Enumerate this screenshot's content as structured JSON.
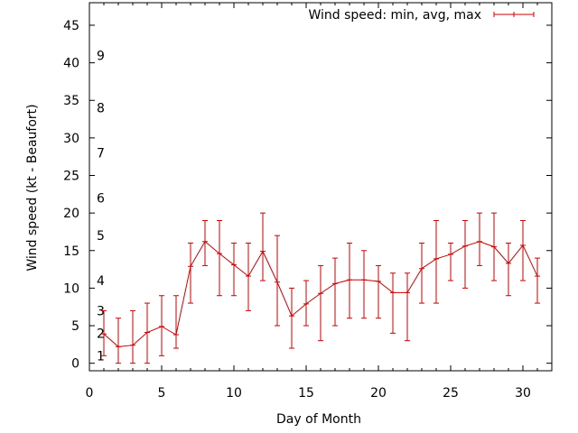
{
  "chart_data": {
    "type": "line",
    "xlabel": "Day of Month",
    "ylabel": "Wind speed (kt - Beaufort)",
    "xlim": [
      0,
      32
    ],
    "ylim": [
      -1,
      48
    ],
    "x_ticks": [
      "0",
      "5",
      "10",
      "15",
      "20",
      "25",
      "30"
    ],
    "y_ticks": [
      "0",
      "5",
      "10",
      "15",
      "20",
      "25",
      "30",
      "35",
      "40",
      "45"
    ],
    "beaufort_labels": [
      {
        "label": "1",
        "y": 1
      },
      {
        "label": "2",
        "y": 4
      },
      {
        "label": "3",
        "y": 7
      },
      {
        "label": "4",
        "y": 11
      },
      {
        "label": "5",
        "y": 17
      },
      {
        "label": "6",
        "y": 22
      },
      {
        "label": "7",
        "y": 28
      },
      {
        "label": "8",
        "y": 34
      },
      {
        "label": "9",
        "y": 41
      }
    ],
    "legend": {
      "position": "top-right"
    },
    "grid": false,
    "colors": {
      "series": "#cc0000"
    },
    "series": [
      {
        "name": "Wind speed: min, avg, max",
        "points": [
          {
            "x": 1,
            "min": 1,
            "avg": 3.9,
            "max": 7
          },
          {
            "x": 2,
            "min": 0,
            "avg": 2.2,
            "max": 6
          },
          {
            "x": 3,
            "min": 0,
            "avg": 2.4,
            "max": 7
          },
          {
            "x": 4,
            "min": 0,
            "avg": 4.1,
            "max": 8
          },
          {
            "x": 5,
            "min": 1,
            "avg": 4.9,
            "max": 9
          },
          {
            "x": 6,
            "min": 2,
            "avg": 3.8,
            "max": 9
          },
          {
            "x": 7,
            "min": 8,
            "avg": 12.9,
            "max": 16
          },
          {
            "x": 8,
            "min": 13,
            "avg": 16.2,
            "max": 19
          },
          {
            "x": 9,
            "min": 9,
            "avg": 14.6,
            "max": 19
          },
          {
            "x": 10,
            "min": 9,
            "avg": 13.1,
            "max": 16
          },
          {
            "x": 11,
            "min": 7,
            "avg": 11.6,
            "max": 16
          },
          {
            "x": 12,
            "min": 11,
            "avg": 14.9,
            "max": 20
          },
          {
            "x": 13,
            "min": 5,
            "avg": 10.8,
            "max": 17
          },
          {
            "x": 14,
            "min": 2,
            "avg": 6.3,
            "max": 10
          },
          {
            "x": 15,
            "min": 5,
            "avg": 7.9,
            "max": 11
          },
          {
            "x": 16,
            "min": 3,
            "avg": 9.3,
            "max": 13
          },
          {
            "x": 17,
            "min": 5,
            "avg": 10.6,
            "max": 14
          },
          {
            "x": 18,
            "min": 6,
            "avg": 11.1,
            "max": 16
          },
          {
            "x": 19,
            "min": 6,
            "avg": 11.1,
            "max": 15
          },
          {
            "x": 20,
            "min": 6,
            "avg": 10.9,
            "max": 13
          },
          {
            "x": 21,
            "min": 4,
            "avg": 9.4,
            "max": 12
          },
          {
            "x": 22,
            "min": 3,
            "avg": 9.4,
            "max": 12
          },
          {
            "x": 23,
            "min": 8,
            "avg": 12.6,
            "max": 16
          },
          {
            "x": 24,
            "min": 8,
            "avg": 13.9,
            "max": 19
          },
          {
            "x": 25,
            "min": 11,
            "avg": 14.5,
            "max": 16
          },
          {
            "x": 26,
            "min": 10,
            "avg": 15.6,
            "max": 19
          },
          {
            "x": 27,
            "min": 13,
            "avg": 16.2,
            "max": 20
          },
          {
            "x": 28,
            "min": 11,
            "avg": 15.5,
            "max": 20
          },
          {
            "x": 29,
            "min": 9,
            "avg": 13.3,
            "max": 16
          },
          {
            "x": 30,
            "min": 11,
            "avg": 15.7,
            "max": 19
          },
          {
            "x": 31,
            "min": 8,
            "avg": 11.6,
            "max": 14
          }
        ]
      }
    ]
  }
}
